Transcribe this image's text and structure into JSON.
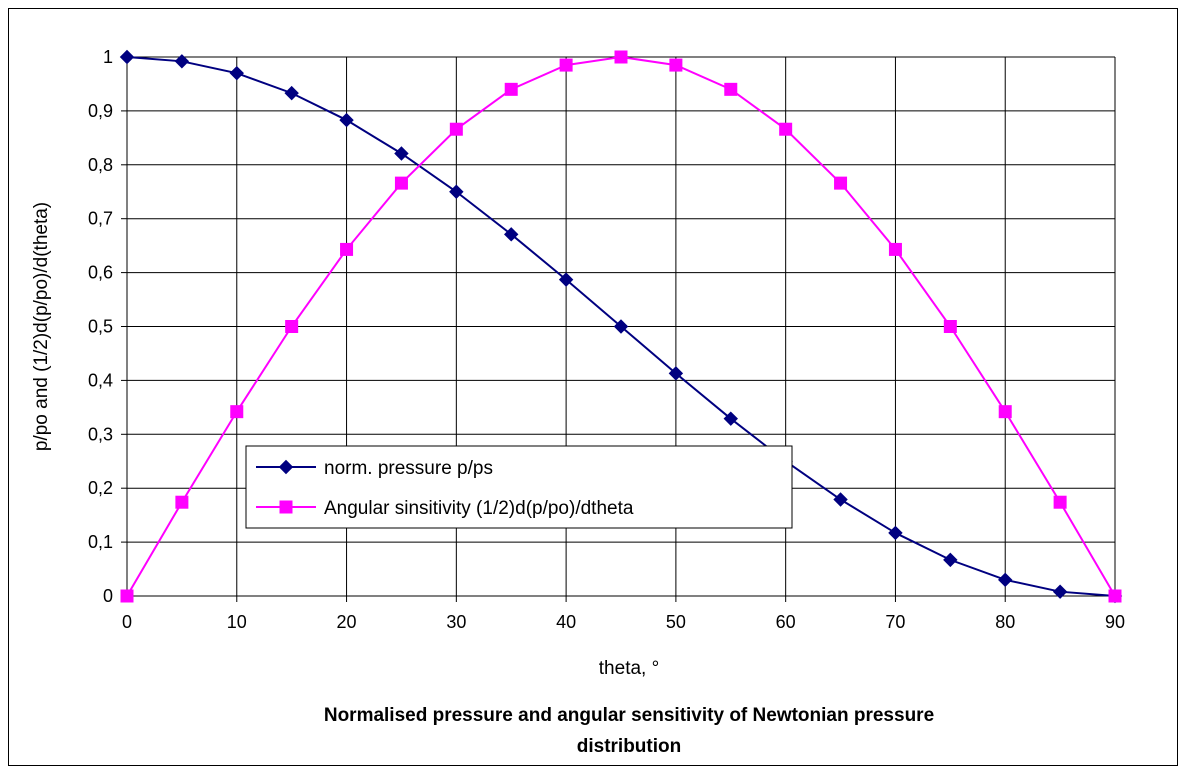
{
  "chart_data": {
    "type": "line",
    "title_lines": [
      "Normalised pressure and angular sensitivity  of Newtonian pressure",
      "distribution"
    ],
    "xlabel": "theta, °",
    "ylabel": "p/po and (1/2)d(p/po)/d(theta)",
    "xlim": [
      0,
      90
    ],
    "ylim": [
      0,
      1
    ],
    "x_ticks": [
      "0",
      "10",
      "20",
      "30",
      "40",
      "50",
      "60",
      "70",
      "80",
      "90"
    ],
    "y_ticks": [
      "0",
      "0,1",
      "0,2",
      "0,3",
      "0,4",
      "0,5",
      "0,6",
      "0,7",
      "0,8",
      "0,9",
      "1"
    ],
    "grid": true,
    "legend_position": "lower-left",
    "x": [
      0,
      5,
      10,
      15,
      20,
      25,
      30,
      35,
      40,
      45,
      50,
      55,
      60,
      65,
      70,
      75,
      80,
      85,
      90
    ],
    "series": [
      {
        "name": "norm. pressure p/ps",
        "color": "#000080",
        "marker": "diamond",
        "values": [
          1.0,
          0.992,
          0.97,
          0.933,
          0.883,
          0.821,
          0.75,
          0.671,
          0.587,
          0.5,
          0.413,
          0.329,
          0.25,
          0.179,
          0.117,
          0.067,
          0.03,
          0.008,
          0.0
        ]
      },
      {
        "name": "Angular sinsitivity (1/2)d(p/po)/dtheta",
        "color": "#FF00FF",
        "marker": "square",
        "values": [
          0.0,
          0.174,
          0.342,
          0.5,
          0.643,
          0.766,
          0.866,
          0.94,
          0.985,
          1.0,
          0.985,
          0.94,
          0.866,
          0.766,
          0.643,
          0.5,
          0.342,
          0.174,
          0.0
        ]
      }
    ]
  }
}
